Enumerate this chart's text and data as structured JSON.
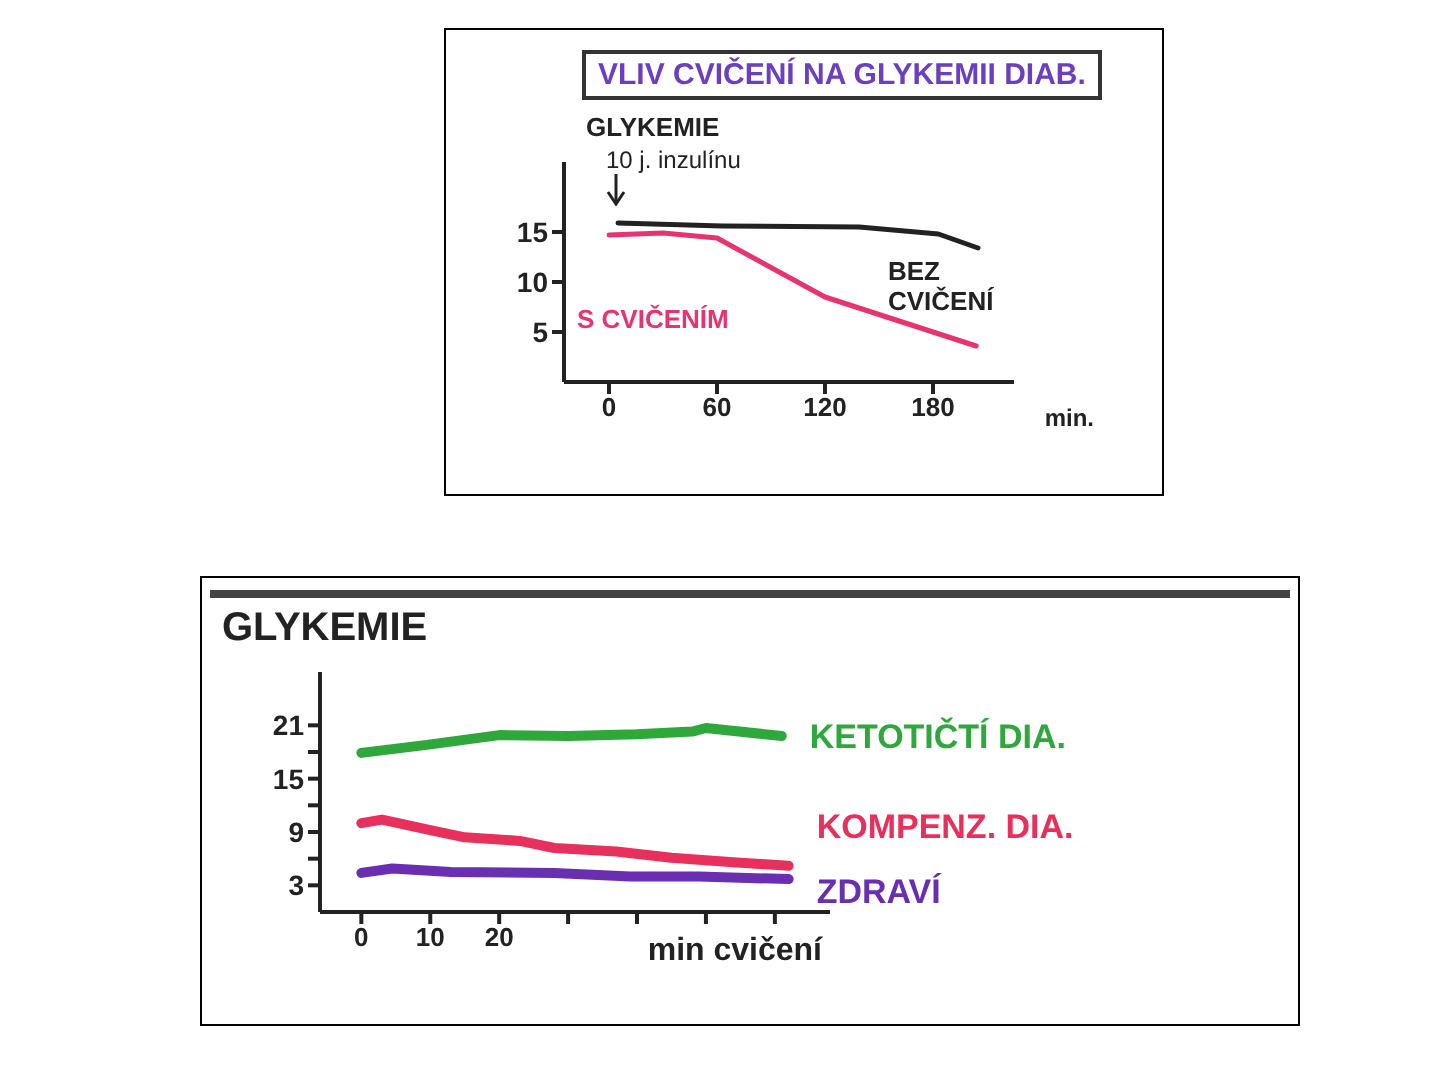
{
  "chart_data": [
    {
      "type": "line",
      "title": "VLIV CVIČENÍ NA GLYKEMII DIAB.",
      "ylabel": "GLYKEMIE",
      "xlabel": "min.",
      "xlim": [
        -25,
        225
      ],
      "xticks": [
        0,
        60,
        120,
        180
      ],
      "ylim": [
        0,
        22
      ],
      "yticks": [
        5,
        10,
        15
      ],
      "annotations": [
        "10 j. inzulínu"
      ],
      "series": [
        {
          "name": "BEZ CVIČENÍ",
          "color": "#222222",
          "x": [
            5,
            63,
            139,
            183,
            205
          ],
          "values": [
            15.9,
            15.6,
            15.5,
            14.8,
            13.4
          ]
        },
        {
          "name": "S CVIČENÍM",
          "color": "#e8336f",
          "x": [
            0,
            30,
            60,
            120,
            180,
            204
          ],
          "values": [
            14.7,
            14.9,
            14.4,
            8.5,
            5,
            3.6
          ]
        }
      ]
    },
    {
      "type": "line",
      "ylabel": "GLYKEMIE",
      "xlabel": "min cvičení",
      "xlim": [
        -6,
        68
      ],
      "xticks": [
        0,
        10,
        20,
        {
          "value": 30,
          "label": null
        },
        {
          "value": 40,
          "label": null
        },
        {
          "value": 50,
          "label": null
        },
        {
          "value": 60,
          "label": null
        }
      ],
      "ylim": [
        0,
        27
      ],
      "yticks": [
        3,
        {
          "value": 6,
          "label": null
        },
        9,
        {
          "value": 12,
          "label": null
        },
        15,
        {
          "value": 18,
          "label": null
        },
        21
      ],
      "series": [
        {
          "name": "KETOTIČTÍ DIA.",
          "color": "#2ea83a",
          "x": [
            0,
            9.5,
            20,
            30,
            40,
            48,
            50,
            61
          ],
          "values": [
            17.9,
            18.8,
            19.9,
            19.8,
            20,
            20.3,
            20.7,
            19.8
          ]
        },
        {
          "name": "KOMPENZ. DIA.",
          "color": "#e8305c",
          "x": [
            0,
            3,
            10,
            15,
            23,
            28,
            37,
            45,
            54,
            62
          ],
          "values": [
            10,
            10.4,
            9.2,
            8.4,
            8,
            7.2,
            6.8,
            6.1,
            5.6,
            5.2
          ]
        },
        {
          "name": "ZDRAVÍ",
          "color": "#6a2fb0",
          "x": [
            0,
            4.5,
            13,
            28,
            39,
            49,
            62
          ],
          "values": [
            4.4,
            4.9,
            4.5,
            4.4,
            4,
            4,
            3.7
          ]
        }
      ]
    }
  ]
}
